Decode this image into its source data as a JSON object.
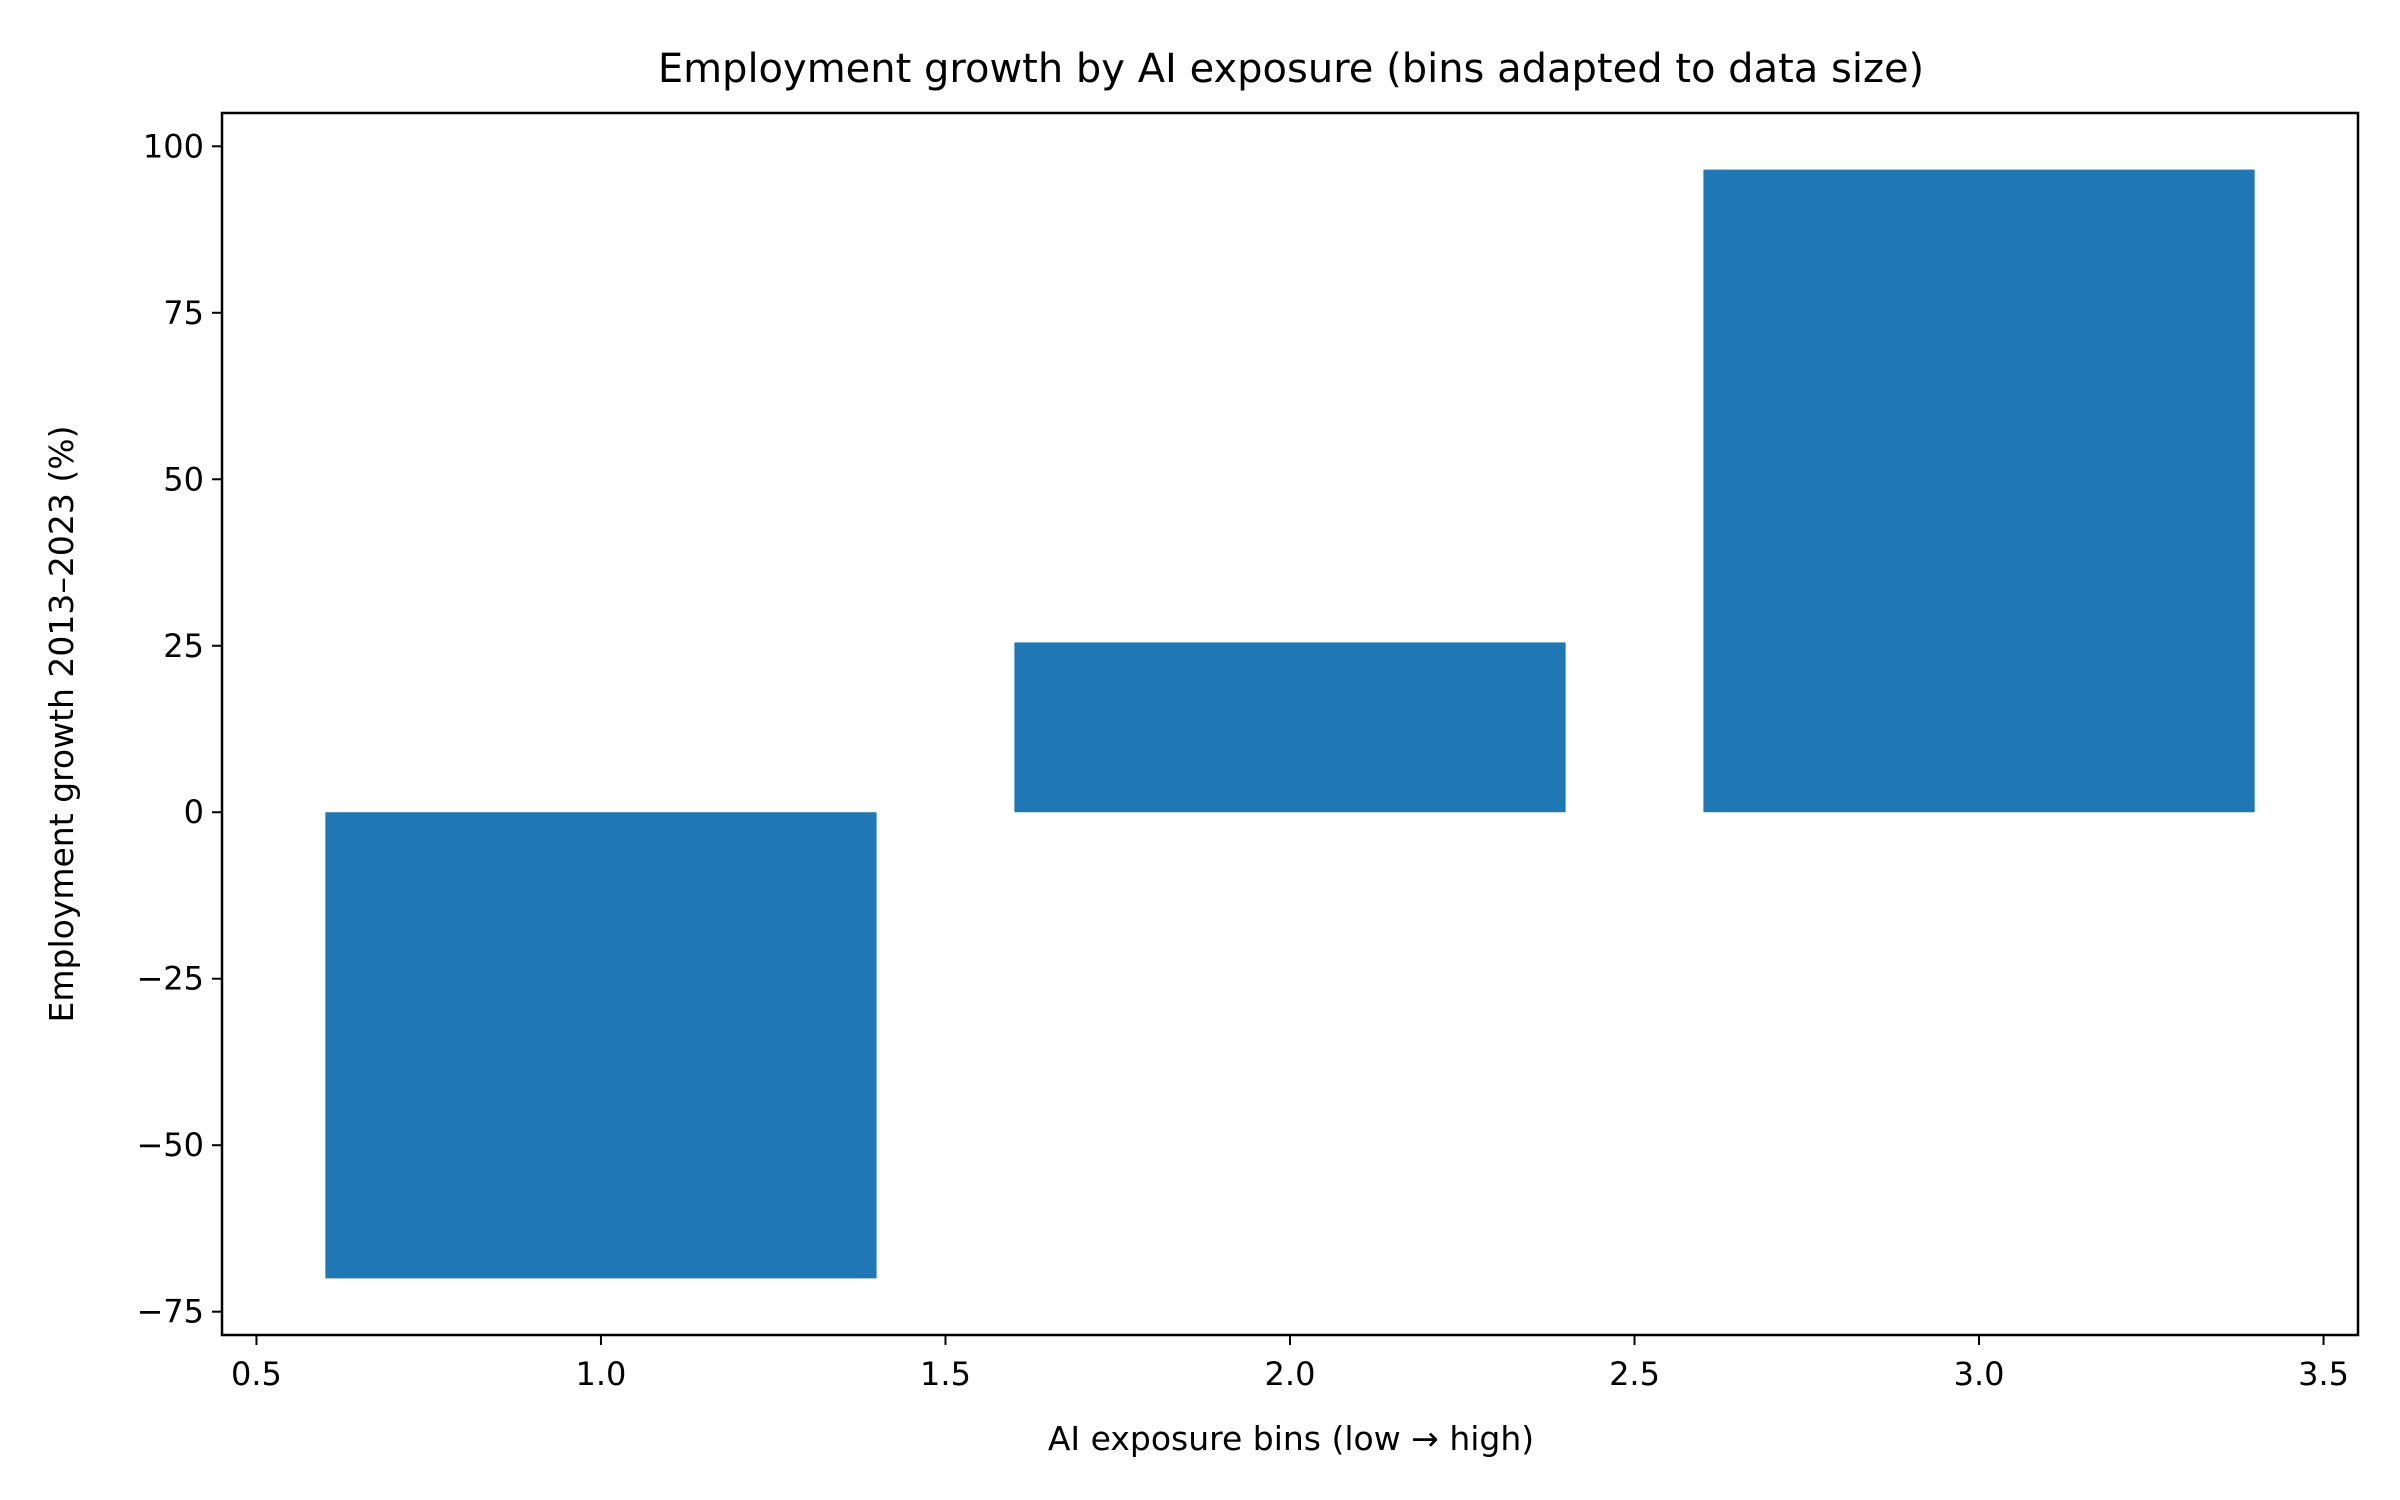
{
  "chart_data": {
    "type": "bar",
    "title": "Employment growth by AI exposure (bins adapted to data size)",
    "xlabel": "AI exposure bins (low → high)",
    "ylabel": "Employment growth 2013–2023 (%)",
    "x": [
      1,
      2,
      3
    ],
    "values": [
      -70,
      25.5,
      96.5
    ],
    "bar_width": 0.8,
    "xlim": [
      0.45,
      3.55
    ],
    "ylim": [
      -78.5,
      105
    ],
    "x_ticks": [
      0.5,
      1.0,
      1.5,
      2.0,
      2.5,
      3.0,
      3.5
    ],
    "x_tick_labels": [
      "0.5",
      "1.0",
      "1.5",
      "2.0",
      "2.5",
      "3.0",
      "3.5"
    ],
    "y_ticks": [
      -75,
      -50,
      -25,
      0,
      25,
      50,
      75,
      100
    ],
    "y_tick_labels": [
      "−75",
      "−50",
      "−25",
      "0",
      "25",
      "50",
      "75",
      "100"
    ],
    "grid": false,
    "bar_color": "#1f77b4"
  }
}
